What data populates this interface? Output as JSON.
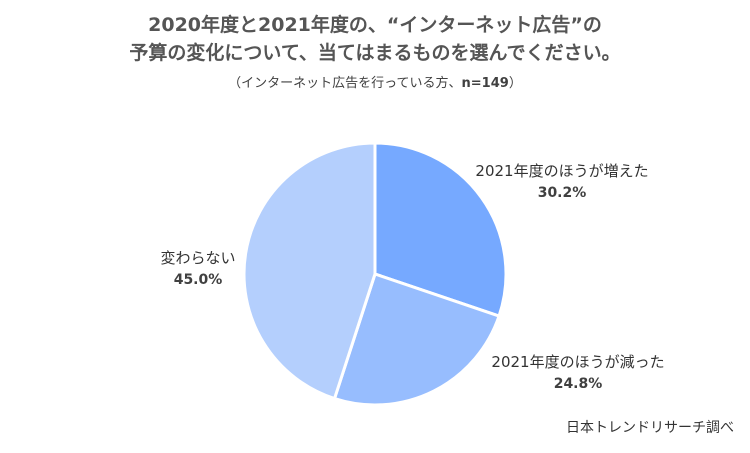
{
  "title_line1": "2020年度と2021年度の、“インターネット広告”の",
  "title_line2": "予算の変化について、当てはまるものを選んでください。",
  "subtitle_prefix": "（インターネット広告を行っている方、",
  "subtitle_n": "n=149",
  "subtitle_suffix": "）",
  "source": "日本トレンドリサーチ調べ",
  "chart_data": {
    "type": "pie",
    "title": "2020年度と2021年度の、“インターネット広告”の予算の変化について、当てはまるものを選んでください。",
    "subtitle": "（インターネット広告を行っている方、n=149）",
    "slices": [
      {
        "label": "2021年度のほうが増えた",
        "value": 30.2,
        "value_label": "30.2%",
        "color": "#76a9ff"
      },
      {
        "label": "2021年度のほうが減った",
        "value": 24.8,
        "value_label": "24.8%",
        "color": "#97bdfe"
      },
      {
        "label": "変わらない",
        "value": 45.0,
        "value_label": "45.0%",
        "color": "#b4cffd"
      }
    ],
    "start": "12 o'clock",
    "direction": "clockwise",
    "labels": "outside, next to each slice"
  }
}
